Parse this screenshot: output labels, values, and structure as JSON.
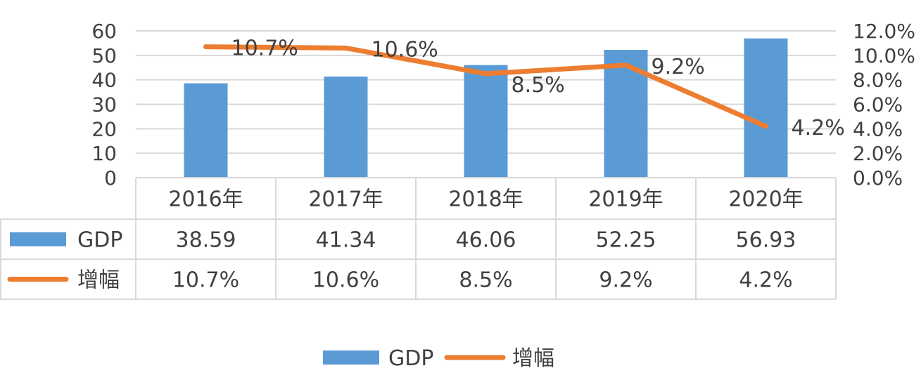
{
  "chart_data": {
    "type": "bar",
    "categories": [
      "2016年",
      "2017年",
      "2018年",
      "2019年",
      "2020年"
    ],
    "series": [
      {
        "name": "GDP",
        "type": "bar",
        "axis": "left",
        "color": "#5B9BD5",
        "values": [
          38.59,
          41.34,
          46.06,
          52.25,
          56.93
        ],
        "labels": [
          "38.59",
          "41.34",
          "46.06",
          "52.25",
          "56.93"
        ]
      },
      {
        "name": "增幅",
        "type": "line",
        "axis": "right",
        "color": "#ED7D31",
        "values": [
          10.7,
          10.6,
          8.5,
          9.2,
          4.2
        ],
        "labels": [
          "10.7%",
          "10.6%",
          "8.5%",
          "9.2%",
          "4.2%"
        ]
      }
    ],
    "y_left": {
      "ylim": [
        0,
        60
      ],
      "ticks": [
        "0",
        "10",
        "20",
        "30",
        "40",
        "50",
        "60"
      ]
    },
    "y_right": {
      "ylim": [
        0,
        12
      ],
      "ticks": [
        "0.0%",
        "2.0%",
        "4.0%",
        "6.0%",
        "8.0%",
        "10.0%",
        "12.0%"
      ]
    },
    "grid": true,
    "data_table": true,
    "legend": {
      "position": "bottom",
      "entries": [
        "GDP",
        "增幅"
      ]
    }
  }
}
